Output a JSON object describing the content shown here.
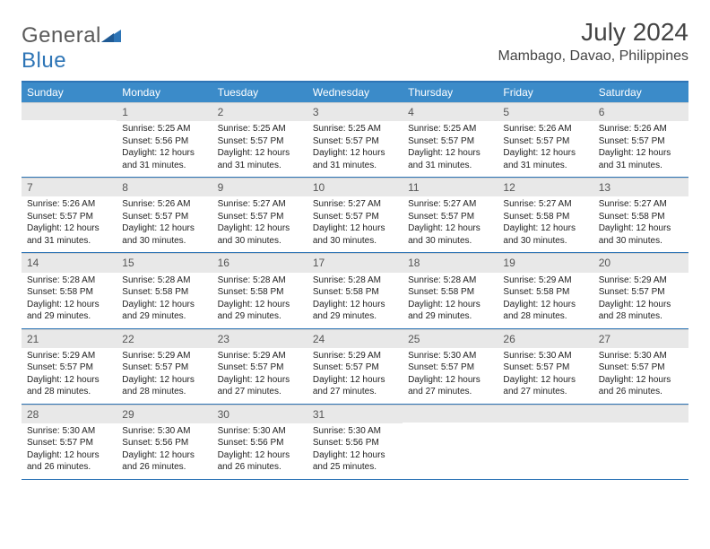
{
  "brand": {
    "part1": "General",
    "part2": "Blue"
  },
  "title": "July 2024",
  "location": "Mambago, Davao, Philippines",
  "colors": {
    "header_bg": "#3b8bc9",
    "header_text": "#ffffff",
    "border": "#2e75b6",
    "daynum_bg": "#e8e8e8",
    "text": "#222222",
    "title_text": "#444444"
  },
  "weekdays": [
    "Sunday",
    "Monday",
    "Tuesday",
    "Wednesday",
    "Thursday",
    "Friday",
    "Saturday"
  ],
  "weeks": [
    [
      null,
      {
        "n": "1",
        "sr": "5:25 AM",
        "ss": "5:56 PM",
        "dl": "12 hours and 31 minutes."
      },
      {
        "n": "2",
        "sr": "5:25 AM",
        "ss": "5:57 PM",
        "dl": "12 hours and 31 minutes."
      },
      {
        "n": "3",
        "sr": "5:25 AM",
        "ss": "5:57 PM",
        "dl": "12 hours and 31 minutes."
      },
      {
        "n": "4",
        "sr": "5:25 AM",
        "ss": "5:57 PM",
        "dl": "12 hours and 31 minutes."
      },
      {
        "n": "5",
        "sr": "5:26 AM",
        "ss": "5:57 PM",
        "dl": "12 hours and 31 minutes."
      },
      {
        "n": "6",
        "sr": "5:26 AM",
        "ss": "5:57 PM",
        "dl": "12 hours and 31 minutes."
      }
    ],
    [
      {
        "n": "7",
        "sr": "5:26 AM",
        "ss": "5:57 PM",
        "dl": "12 hours and 31 minutes."
      },
      {
        "n": "8",
        "sr": "5:26 AM",
        "ss": "5:57 PM",
        "dl": "12 hours and 30 minutes."
      },
      {
        "n": "9",
        "sr": "5:27 AM",
        "ss": "5:57 PM",
        "dl": "12 hours and 30 minutes."
      },
      {
        "n": "10",
        "sr": "5:27 AM",
        "ss": "5:57 PM",
        "dl": "12 hours and 30 minutes."
      },
      {
        "n": "11",
        "sr": "5:27 AM",
        "ss": "5:57 PM",
        "dl": "12 hours and 30 minutes."
      },
      {
        "n": "12",
        "sr": "5:27 AM",
        "ss": "5:58 PM",
        "dl": "12 hours and 30 minutes."
      },
      {
        "n": "13",
        "sr": "5:27 AM",
        "ss": "5:58 PM",
        "dl": "12 hours and 30 minutes."
      }
    ],
    [
      {
        "n": "14",
        "sr": "5:28 AM",
        "ss": "5:58 PM",
        "dl": "12 hours and 29 minutes."
      },
      {
        "n": "15",
        "sr": "5:28 AM",
        "ss": "5:58 PM",
        "dl": "12 hours and 29 minutes."
      },
      {
        "n": "16",
        "sr": "5:28 AM",
        "ss": "5:58 PM",
        "dl": "12 hours and 29 minutes."
      },
      {
        "n": "17",
        "sr": "5:28 AM",
        "ss": "5:58 PM",
        "dl": "12 hours and 29 minutes."
      },
      {
        "n": "18",
        "sr": "5:28 AM",
        "ss": "5:58 PM",
        "dl": "12 hours and 29 minutes."
      },
      {
        "n": "19",
        "sr": "5:29 AM",
        "ss": "5:58 PM",
        "dl": "12 hours and 28 minutes."
      },
      {
        "n": "20",
        "sr": "5:29 AM",
        "ss": "5:57 PM",
        "dl": "12 hours and 28 minutes."
      }
    ],
    [
      {
        "n": "21",
        "sr": "5:29 AM",
        "ss": "5:57 PM",
        "dl": "12 hours and 28 minutes."
      },
      {
        "n": "22",
        "sr": "5:29 AM",
        "ss": "5:57 PM",
        "dl": "12 hours and 28 minutes."
      },
      {
        "n": "23",
        "sr": "5:29 AM",
        "ss": "5:57 PM",
        "dl": "12 hours and 27 minutes."
      },
      {
        "n": "24",
        "sr": "5:29 AM",
        "ss": "5:57 PM",
        "dl": "12 hours and 27 minutes."
      },
      {
        "n": "25",
        "sr": "5:30 AM",
        "ss": "5:57 PM",
        "dl": "12 hours and 27 minutes."
      },
      {
        "n": "26",
        "sr": "5:30 AM",
        "ss": "5:57 PM",
        "dl": "12 hours and 27 minutes."
      },
      {
        "n": "27",
        "sr": "5:30 AM",
        "ss": "5:57 PM",
        "dl": "12 hours and 26 minutes."
      }
    ],
    [
      {
        "n": "28",
        "sr": "5:30 AM",
        "ss": "5:57 PM",
        "dl": "12 hours and 26 minutes."
      },
      {
        "n": "29",
        "sr": "5:30 AM",
        "ss": "5:56 PM",
        "dl": "12 hours and 26 minutes."
      },
      {
        "n": "30",
        "sr": "5:30 AM",
        "ss": "5:56 PM",
        "dl": "12 hours and 26 minutes."
      },
      {
        "n": "31",
        "sr": "5:30 AM",
        "ss": "5:56 PM",
        "dl": "12 hours and 25 minutes."
      },
      null,
      null,
      null
    ]
  ],
  "labels": {
    "sunrise": "Sunrise:",
    "sunset": "Sunset:",
    "daylight": "Daylight:"
  }
}
